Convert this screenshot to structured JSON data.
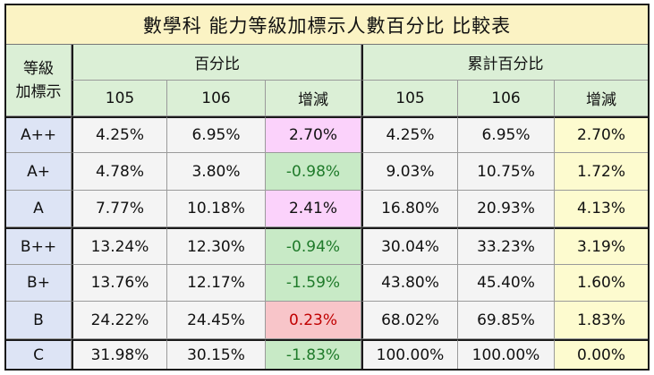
{
  "title": "數學科  能力等級加標示人數百分比 比較表",
  "header": {
    "level_col": [
      "等級",
      "加標示"
    ],
    "group_pct": "百分比",
    "group_cum": "累計百分比",
    "sub": [
      "105",
      "106",
      "增減",
      "105",
      "106",
      "增減"
    ]
  },
  "rows": [
    {
      "level": "A++",
      "p105": "4.25%",
      "p106": "6.95%",
      "pdiff": "2.70%",
      "c105": "4.25%",
      "c106": "6.95%",
      "cdiff": "2.70%",
      "tone": "pink"
    },
    {
      "level": "A+",
      "p105": "4.78%",
      "p106": "3.80%",
      "pdiff": "-0.98%",
      "c105": "9.03%",
      "c106": "10.75%",
      "cdiff": "1.72%",
      "tone": "green"
    },
    {
      "level": "A",
      "p105": "7.77%",
      "p106": "10.18%",
      "pdiff": "2.41%",
      "c105": "16.80%",
      "c106": "20.93%",
      "cdiff": "4.13%",
      "tone": "pink"
    },
    {
      "level": "B++",
      "p105": "13.24%",
      "p106": "12.30%",
      "pdiff": "-0.94%",
      "c105": "30.04%",
      "c106": "33.23%",
      "cdiff": "3.19%",
      "tone": "green"
    },
    {
      "level": "B+",
      "p105": "13.76%",
      "p106": "12.17%",
      "pdiff": "-1.59%",
      "c105": "43.80%",
      "c106": "45.40%",
      "cdiff": "1.60%",
      "tone": "green"
    },
    {
      "level": "B",
      "p105": "24.22%",
      "p106": "24.45%",
      "pdiff": "0.23%",
      "c105": "68.02%",
      "c106": "69.85%",
      "cdiff": "1.83%",
      "tone": "red"
    },
    {
      "level": "C",
      "p105": "31.98%",
      "p106": "30.15%",
      "pdiff": "-1.83%",
      "c105": "100.00%",
      "c106": "100.00%",
      "cdiff": "0.00%",
      "tone": "green"
    }
  ],
  "colors": {
    "title_bg": "#fbf3c4",
    "header_bg": "#dbefd6",
    "level_bg": "#dde4f5",
    "increase_bg": "#fbd2fb",
    "decrease_bg": "#c8eac6",
    "small_increase_bg": "#f8c5c9",
    "cum_diff_bg": "#fdfbcf"
  }
}
